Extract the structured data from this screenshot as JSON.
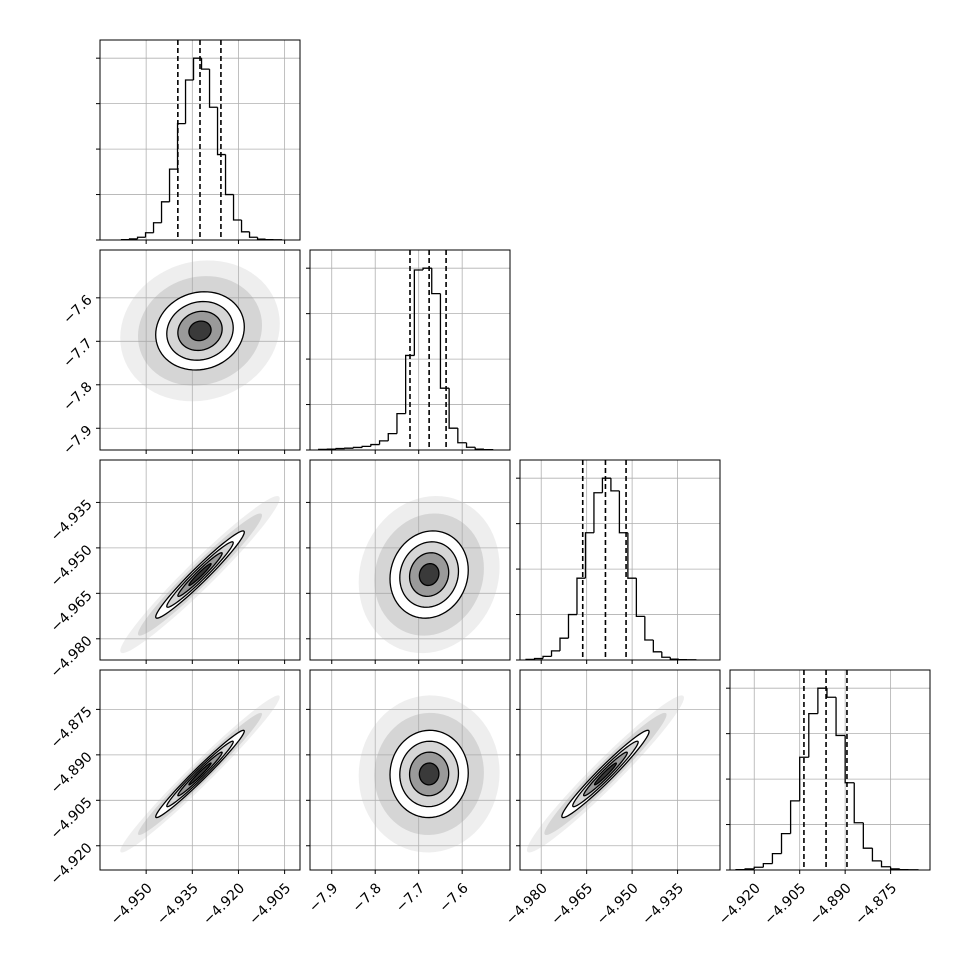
{
  "chart_data": {
    "type": "corner",
    "hist_ylim": [
      0,
      1100
    ],
    "hist_yticks": [
      0,
      250,
      500,
      750,
      1000
    ],
    "levels": [
      2,
      1.5,
      1,
      0.5
    ],
    "params": [
      {
        "xlim": [
          -4.965,
          -4.9
        ],
        "center": -4.9325,
        "sigma": 0.0072,
        "xticks": [
          {
            "value": -4.95,
            "label": "−4.950"
          },
          {
            "value": -4.935,
            "label": "−4.935"
          },
          {
            "value": -4.92,
            "label": "−4.920"
          },
          {
            "value": -4.905,
            "label": "−4.905"
          }
        ],
        "quantiles": [
          -4.9397,
          -4.9325,
          -4.9257
        ],
        "bins": [
          -4.958,
          -4.9554,
          -4.9528,
          -4.9502,
          -4.9476,
          -4.945,
          -4.9424,
          -4.9398,
          -4.9372,
          -4.9346,
          -4.932,
          -4.9294,
          -4.9268,
          -4.9242,
          -4.9216,
          -4.919,
          -4.9164,
          -4.9138,
          -4.9112,
          -4.9086,
          -4.906
        ],
        "counts": [
          2,
          6,
          15,
          40,
          95,
          210,
          390,
          640,
          880,
          1000,
          940,
          730,
          470,
          250,
          110,
          45,
          15,
          5,
          2,
          1
        ]
      },
      {
        "xlim": [
          -7.95,
          -7.49
        ],
        "center": -7.676,
        "sigma": 0.045,
        "xticks": [
          {
            "value": -7.9,
            "label": "−7.9"
          },
          {
            "value": -7.8,
            "label": "−7.8"
          },
          {
            "value": -7.7,
            "label": "−7.7"
          },
          {
            "value": -7.6,
            "label": "−7.6"
          }
        ],
        "quantiles": [
          -7.72,
          -7.676,
          -7.637
        ],
        "bins": [
          -7.93,
          -7.91,
          -7.89,
          -7.87,
          -7.85,
          -7.83,
          -7.81,
          -7.79,
          -7.77,
          -7.75,
          -7.73,
          -7.71,
          -7.69,
          -7.67,
          -7.65,
          -7.63,
          -7.61,
          -7.59,
          -7.57,
          -7.55,
          -7.53
        ],
        "counts": [
          3,
          5,
          8,
          10,
          14,
          20,
          30,
          50,
          90,
          200,
          520,
          990,
          1000,
          860,
          340,
          120,
          40,
          15,
          5,
          2
        ]
      },
      {
        "xlim": [
          -4.987,
          -4.921
        ],
        "center": -4.9588,
        "sigma": 0.0072,
        "xticks": [
          {
            "value": -4.98,
            "label": "−4.980"
          },
          {
            "value": -4.965,
            "label": "−4.965"
          },
          {
            "value": -4.95,
            "label": "−4.950"
          },
          {
            "value": -4.935,
            "label": "−4.935"
          }
        ],
        "quantiles": [
          -4.9663,
          -4.9588,
          -4.952
        ],
        "bins": [
          -4.985,
          -4.9822,
          -4.9794,
          -4.9766,
          -4.9738,
          -4.971,
          -4.9682,
          -4.9654,
          -4.9626,
          -4.9598,
          -4.957,
          -4.9542,
          -4.9514,
          -4.9486,
          -4.9458,
          -4.943,
          -4.9402,
          -4.9374,
          -4.9346,
          -4.9318,
          -4.929
        ],
        "counts": [
          3,
          8,
          20,
          50,
          120,
          250,
          450,
          700,
          920,
          1000,
          930,
          700,
          450,
          240,
          110,
          45,
          15,
          5,
          2,
          1
        ]
      },
      {
        "xlim": [
          -4.928,
          -4.862
        ],
        "center": -4.8963,
        "sigma": 0.0072,
        "xticks": [
          {
            "value": -4.92,
            "label": "−4.920"
          },
          {
            "value": -4.905,
            "label": "−4.905"
          },
          {
            "value": -4.89,
            "label": "−4.890"
          },
          {
            "value": -4.875,
            "label": "−4.875"
          }
        ],
        "quantiles": [
          -4.9036,
          -4.8963,
          -4.8894
        ],
        "bins": [
          -4.926,
          -4.923,
          -4.92,
          -4.917,
          -4.914,
          -4.911,
          -4.908,
          -4.905,
          -4.902,
          -4.899,
          -4.896,
          -4.893,
          -4.89,
          -4.887,
          -4.884,
          -4.881,
          -4.878,
          -4.875,
          -4.872,
          -4.869,
          -4.866
        ],
        "counts": [
          2,
          6,
          15,
          35,
          90,
          200,
          380,
          620,
          860,
          1000,
          950,
          740,
          480,
          260,
          120,
          50,
          18,
          6,
          2,
          1
        ]
      }
    ],
    "pairs": [
      {
        "x": 0,
        "y": 1,
        "rho": 0.1
      },
      {
        "x": 0,
        "y": 2,
        "rho": 0.97
      },
      {
        "x": 1,
        "y": 2,
        "rho": 0.1
      },
      {
        "x": 0,
        "y": 3,
        "rho": 0.98
      },
      {
        "x": 1,
        "y": 3,
        "rho": 0.02
      },
      {
        "x": 2,
        "y": 3,
        "rho": 0.97
      }
    ]
  }
}
